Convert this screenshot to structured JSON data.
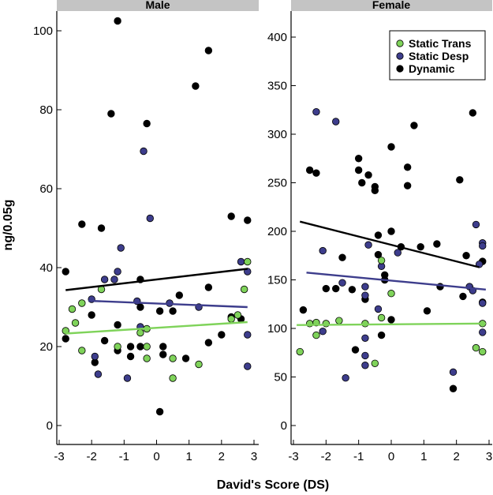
{
  "chart_data": {
    "type": "scatter",
    "xlabel": "David's Score (DS)",
    "ylabel": "ng/0.05g",
    "x_ticks": [
      -3,
      -2,
      -1,
      0,
      1,
      2,
      3
    ],
    "x_tick_labels": [
      "-3",
      "-2",
      "-1",
      "0",
      "1",
      "2",
      "3"
    ],
    "xlim": [
      -3,
      3
    ],
    "colors": {
      "Static Trans": "#7fd35a",
      "Static Desp": "#3d3d8c",
      "Dynamic": "#000000"
    },
    "legend": {
      "position": "top-right of Female panel",
      "entries": [
        {
          "key": "trans",
          "label": "Static Trans",
          "color": "#7fd35a"
        },
        {
          "key": "desp",
          "label": "Static Desp",
          "color": "#3d3d8c"
        },
        {
          "key": "dyn",
          "label": "Dynamic",
          "color": "#000000"
        }
      ]
    },
    "panels": [
      {
        "title": "Male",
        "ylim": [
          -5,
          108
        ],
        "y_ticks": [
          0,
          20,
          40,
          60,
          80,
          100
        ],
        "y_tick_labels": [
          "0",
          "20",
          "40",
          "60",
          "80",
          "100"
        ],
        "series": {
          "trans": [
            [
              -2.8,
              24
            ],
            [
              -2.6,
              29.5
            ],
            [
              -2.5,
              26
            ],
            [
              -2.3,
              31
            ],
            [
              -2.3,
              19
            ],
            [
              -1.7,
              34.5
            ],
            [
              -1.2,
              20
            ],
            [
              -0.5,
              23.5
            ],
            [
              -0.3,
              24.5
            ],
            [
              -0.3,
              20
            ],
            [
              -0.3,
              17
            ],
            [
              0.5,
              17
            ],
            [
              0.5,
              12
            ],
            [
              1.3,
              15.5
            ],
            [
              2.3,
              27
            ],
            [
              2.5,
              28
            ],
            [
              2.7,
              34.5
            ],
            [
              2.8,
              41.5
            ]
          ],
          "desp": [
            [
              -2.0,
              32
            ],
            [
              -1.9,
              17.5
            ],
            [
              -1.8,
              13
            ],
            [
              -1.6,
              37
            ],
            [
              -1.3,
              37
            ],
            [
              -1.2,
              39
            ],
            [
              -1.1,
              45
            ],
            [
              -0.9,
              12
            ],
            [
              -0.6,
              31.5
            ],
            [
              -0.4,
              69.5
            ],
            [
              -0.2,
              52.5
            ],
            [
              0.4,
              31
            ],
            [
              -0.5,
              25
            ],
            [
              1.3,
              30
            ],
            [
              2.6,
              41.5
            ],
            [
              2.8,
              39
            ],
            [
              2.8,
              23
            ],
            [
              2.8,
              15
            ]
          ],
          "dyn": [
            [
              -2.8,
              39
            ],
            [
              -2.8,
              22
            ],
            [
              -2.3,
              51
            ],
            [
              -2.0,
              28
            ],
            [
              -1.9,
              16
            ],
            [
              -1.7,
              50
            ],
            [
              -1.6,
              21.5
            ],
            [
              -1.4,
              79
            ],
            [
              -1.2,
              102.5
            ],
            [
              -1.2,
              25.5
            ],
            [
              -1.2,
              19
            ],
            [
              -0.8,
              20
            ],
            [
              -0.8,
              17.5
            ],
            [
              -0.5,
              37
            ],
            [
              -0.5,
              30
            ],
            [
              -0.5,
              20
            ],
            [
              -0.3,
              76.5
            ],
            [
              0.1,
              3.5
            ],
            [
              0.1,
              29
            ],
            [
              0.2,
              20
            ],
            [
              0.2,
              18
            ],
            [
              0.5,
              29
            ],
            [
              0.7,
              33
            ],
            [
              0.9,
              17
            ],
            [
              1.2,
              86
            ],
            [
              1.6,
              95
            ],
            [
              1.6,
              21
            ],
            [
              1.6,
              35
            ],
            [
              2.0,
              23
            ],
            [
              2.3,
              53
            ],
            [
              2.3,
              27.5
            ],
            [
              2.6,
              27
            ],
            [
              2.8,
              52
            ]
          ]
        },
        "fits": {
          "trans": {
            "x": [
              -2.8,
              2.8
            ],
            "y": [
              23.3,
              26.2
            ]
          },
          "desp": {
            "x": [
              -2.1,
              2.8
            ],
            "y": [
              31.6,
              30.0
            ]
          },
          "dyn": {
            "x": [
              -2.8,
              2.8
            ],
            "y": [
              34.3,
              39.7
            ]
          }
        }
      },
      {
        "title": "Female",
        "ylim": [
          -15,
          430
        ],
        "y_ticks": [
          0,
          50,
          100,
          150,
          200,
          250,
          300,
          350,
          400
        ],
        "y_tick_labels": [
          "0",
          "50",
          "100",
          "150",
          "200",
          "250",
          "300",
          "350",
          "400"
        ],
        "series": {
          "trans": [
            [
              -2.8,
              76
            ],
            [
              -2.5,
              105
            ],
            [
              -2.3,
              93
            ],
            [
              -2.3,
              106
            ],
            [
              -2.0,
              105
            ],
            [
              -1.6,
              108
            ],
            [
              -0.8,
              105
            ],
            [
              -0.5,
              64
            ],
            [
              -0.3,
              111
            ],
            [
              -0.3,
              170
            ],
            [
              0.0,
              136
            ],
            [
              2.6,
              80
            ],
            [
              2.8,
              105
            ],
            [
              2.8,
              76
            ]
          ],
          "desp": [
            [
              -2.3,
              323
            ],
            [
              -2.1,
              180
            ],
            [
              -2.1,
              97
            ],
            [
              -1.7,
              313
            ],
            [
              -1.5,
              147
            ],
            [
              -1.4,
              49
            ],
            [
              -0.8,
              134
            ],
            [
              -0.8,
              90
            ],
            [
              -0.8,
              72
            ],
            [
              -0.8,
              143
            ],
            [
              -0.8,
              62
            ],
            [
              -0.7,
              186
            ],
            [
              -0.4,
              120
            ],
            [
              -0.3,
              164
            ],
            [
              0.2,
              178
            ],
            [
              1.9,
              55
            ],
            [
              2.4,
              143
            ],
            [
              2.5,
              139
            ],
            [
              2.6,
              207
            ],
            [
              2.7,
              166
            ],
            [
              2.8,
              188
            ],
            [
              2.8,
              185
            ],
            [
              2.8,
              126
            ],
            [
              2.8,
              96
            ]
          ],
          "dyn": [
            [
              -2.7,
              119
            ],
            [
              -2.5,
              263
            ],
            [
              -2.3,
              260
            ],
            [
              -2.0,
              141
            ],
            [
              -1.7,
              141
            ],
            [
              -1.5,
              173
            ],
            [
              -1.2,
              140
            ],
            [
              -1.1,
              78
            ],
            [
              -1.0,
              275
            ],
            [
              -1.0,
              263
            ],
            [
              -0.9,
              250
            ],
            [
              -0.7,
              258
            ],
            [
              -0.5,
              246
            ],
            [
              -0.5,
              242
            ],
            [
              -0.4,
              196
            ],
            [
              -0.4,
              176
            ],
            [
              -0.2,
              155
            ],
            [
              -0.2,
              150
            ],
            [
              0.0,
              287
            ],
            [
              0.0,
              200
            ],
            [
              0.0,
              109
            ],
            [
              0.3,
              184
            ],
            [
              0.5,
              266
            ],
            [
              0.5,
              247
            ],
            [
              0.7,
              309
            ],
            [
              0.9,
              184
            ],
            [
              1.1,
              118
            ],
            [
              1.4,
              187
            ],
            [
              1.5,
              143
            ],
            [
              1.9,
              38
            ],
            [
              2.1,
              253
            ],
            [
              2.2,
              133
            ],
            [
              2.3,
              175
            ],
            [
              2.5,
              322
            ],
            [
              2.8,
              169
            ],
            [
              2.8,
              127
            ],
            [
              -0.3,
              93
            ],
            [
              -0.8,
              130
            ]
          ]
        },
        "fits": {
          "trans": {
            "x": [
              -2.9,
              2.9
            ],
            "y": [
              103.5,
              105.0
            ]
          },
          "desp": {
            "x": [
              -2.6,
              2.9
            ],
            "y": [
              157.5,
              140.0
            ]
          },
          "dyn": {
            "x": [
              -2.8,
              2.7
            ],
            "y": [
              210.0,
              163.0
            ]
          }
        }
      }
    ]
  }
}
